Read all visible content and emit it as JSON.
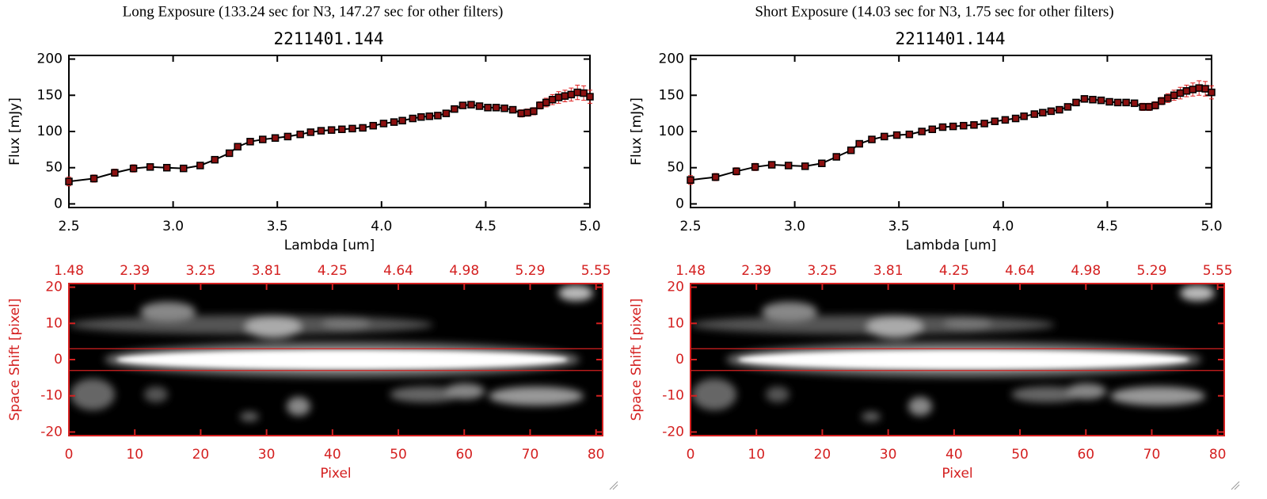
{
  "chart_data": [
    {
      "type": "line",
      "title": "Long Exposure (133.24 sec for N3, 147.27 sec for other filters)",
      "subtitle": "2211401.144",
      "xlabel": "Lambda [um]",
      "ylabel": "Flux [mJy]",
      "xlim": [
        2.5,
        5.0
      ],
      "ylim": [
        -5,
        205
      ],
      "xticks": [
        2.5,
        {
          "value": 3,
          "label": "3.0"
        },
        3.5,
        {
          "value": 4,
          "label": "4.0"
        },
        4.5,
        {
          "value": 5,
          "label": "5.0"
        }
      ],
      "yticks": [
        0,
        50,
        100,
        150,
        200
      ],
      "color": "#000000",
      "marker_color": "#8b1010",
      "error_color": "#e02020",
      "x": [
        2.5,
        2.62,
        2.72,
        2.81,
        2.89,
        2.97,
        3.05,
        3.13,
        3.2,
        3.27,
        3.31,
        3.37,
        3.43,
        3.49,
        3.55,
        3.61,
        3.66,
        3.71,
        3.76,
        3.81,
        3.86,
        3.91,
        3.96,
        4.01,
        4.06,
        4.1,
        4.15,
        4.19,
        4.23,
        4.27,
        4.31,
        4.35,
        4.39,
        4.43,
        4.47,
        4.51,
        4.55,
        4.59,
        4.63,
        4.67,
        4.7,
        4.73,
        4.76,
        4.79,
        4.82,
        4.85,
        4.88,
        4.91,
        4.94,
        4.97,
        5.0
      ],
      "values": [
        31,
        35,
        43,
        49,
        51,
        50,
        49,
        53,
        61,
        70,
        79,
        86,
        89,
        91,
        93,
        96,
        99,
        101,
        102,
        103,
        104,
        105,
        108,
        111,
        113,
        115,
        118,
        120,
        121,
        122,
        125,
        131,
        136,
        137,
        135,
        133,
        133,
        132,
        130,
        125,
        126,
        128,
        136,
        140,
        144,
        147,
        149,
        151,
        154,
        153,
        148
      ],
      "errors": [
        6,
        5,
        5,
        5,
        4,
        4,
        4,
        4,
        4,
        4,
        4,
        3,
        3,
        3,
        3,
        3,
        3,
        3,
        3,
        3,
        3,
        3,
        3,
        3,
        3,
        3,
        3,
        3,
        3,
        3,
        3,
        3,
        4,
        4,
        4,
        4,
        4,
        4,
        4,
        5,
        5,
        5,
        5,
        6,
        7,
        8,
        8,
        9,
        10,
        10,
        9
      ]
    },
    {
      "type": "heatmap",
      "xlabel": "Pixel",
      "ylabel": "Space Shift [pixel]",
      "xlim": [
        0,
        81
      ],
      "ylim": [
        -21,
        21
      ],
      "xticks": [
        0,
        10,
        20,
        30,
        40,
        50,
        60,
        70,
        80
      ],
      "yticks": [
        -20,
        -10,
        0,
        10,
        20
      ],
      "x2ticks": [
        {
          "value": 0,
          "label": "1.48"
        },
        {
          "value": 10,
          "label": "2.39"
        },
        {
          "value": 20,
          "label": "3.25"
        },
        {
          "value": 30,
          "label": "3.81"
        },
        {
          "value": 40,
          "label": "4.25"
        },
        {
          "value": 50,
          "label": "4.64"
        },
        {
          "value": 60,
          "label": "4.98"
        },
        {
          "value": 70,
          "label": "5.29"
        },
        {
          "value": 80,
          "label": "5.55"
        }
      ],
      "hlines": [
        3,
        -3
      ],
      "color": "#d42020"
    },
    {
      "type": "line",
      "title": "Short Exposure (14.03 sec for N3, 1.75 sec for other filters)",
      "subtitle": "2211401.144",
      "xlabel": "Lambda [um]",
      "ylabel": "Flux [mJy]",
      "xlim": [
        2.5,
        5.0
      ],
      "ylim": [
        -5,
        205
      ],
      "xticks": [
        2.5,
        {
          "value": 3,
          "label": "3.0"
        },
        3.5,
        {
          "value": 4,
          "label": "4.0"
        },
        4.5,
        {
          "value": 5,
          "label": "5.0"
        }
      ],
      "yticks": [
        0,
        50,
        100,
        150,
        200
      ],
      "color": "#000000",
      "marker_color": "#8b1010",
      "error_color": "#e02020",
      "x": [
        2.5,
        2.62,
        2.72,
        2.81,
        2.89,
        2.97,
        3.05,
        3.13,
        3.2,
        3.27,
        3.31,
        3.37,
        3.43,
        3.49,
        3.55,
        3.61,
        3.66,
        3.71,
        3.76,
        3.81,
        3.86,
        3.91,
        3.96,
        4.01,
        4.06,
        4.1,
        4.15,
        4.19,
        4.23,
        4.27,
        4.31,
        4.35,
        4.39,
        4.43,
        4.47,
        4.51,
        4.55,
        4.59,
        4.63,
        4.67,
        4.7,
        4.73,
        4.76,
        4.79,
        4.82,
        4.85,
        4.88,
        4.91,
        4.94,
        4.97,
        5.0
      ],
      "values": [
        33,
        37,
        45,
        51,
        54,
        53,
        52,
        56,
        65,
        74,
        83,
        89,
        93,
        95,
        96,
        100,
        103,
        106,
        107,
        108,
        109,
        111,
        114,
        116,
        118,
        121,
        124,
        126,
        128,
        130,
        134,
        140,
        145,
        144,
        143,
        141,
        140,
        140,
        139,
        134,
        134,
        136,
        142,
        146,
        150,
        153,
        156,
        158,
        160,
        159,
        154
      ],
      "errors": [
        6,
        5,
        5,
        5,
        4,
        4,
        4,
        4,
        4,
        4,
        4,
        3,
        3,
        3,
        3,
        3,
        3,
        3,
        3,
        3,
        3,
        3,
        3,
        3,
        3,
        3,
        3,
        3,
        3,
        3,
        3,
        3,
        4,
        4,
        4,
        4,
        4,
        4,
        4,
        5,
        5,
        5,
        5,
        6,
        7,
        8,
        8,
        9,
        10,
        10,
        9
      ]
    },
    {
      "type": "heatmap",
      "xlabel": "Pixel",
      "ylabel": "Space Shift [pixel]",
      "xlim": [
        0,
        81
      ],
      "ylim": [
        -21,
        21
      ],
      "xticks": [
        0,
        10,
        20,
        30,
        40,
        50,
        60,
        70,
        80
      ],
      "yticks": [
        -20,
        -10,
        0,
        10,
        20
      ],
      "x2ticks": [
        {
          "value": 0,
          "label": "1.48"
        },
        {
          "value": 10,
          "label": "2.39"
        },
        {
          "value": 20,
          "label": "3.25"
        },
        {
          "value": 30,
          "label": "3.81"
        },
        {
          "value": 40,
          "label": "4.25"
        },
        {
          "value": 50,
          "label": "4.64"
        },
        {
          "value": 60,
          "label": "4.98"
        },
        {
          "value": 70,
          "label": "5.29"
        },
        {
          "value": 80,
          "label": "5.55"
        }
      ],
      "hlines": [
        3,
        -3
      ],
      "color": "#d42020"
    }
  ]
}
